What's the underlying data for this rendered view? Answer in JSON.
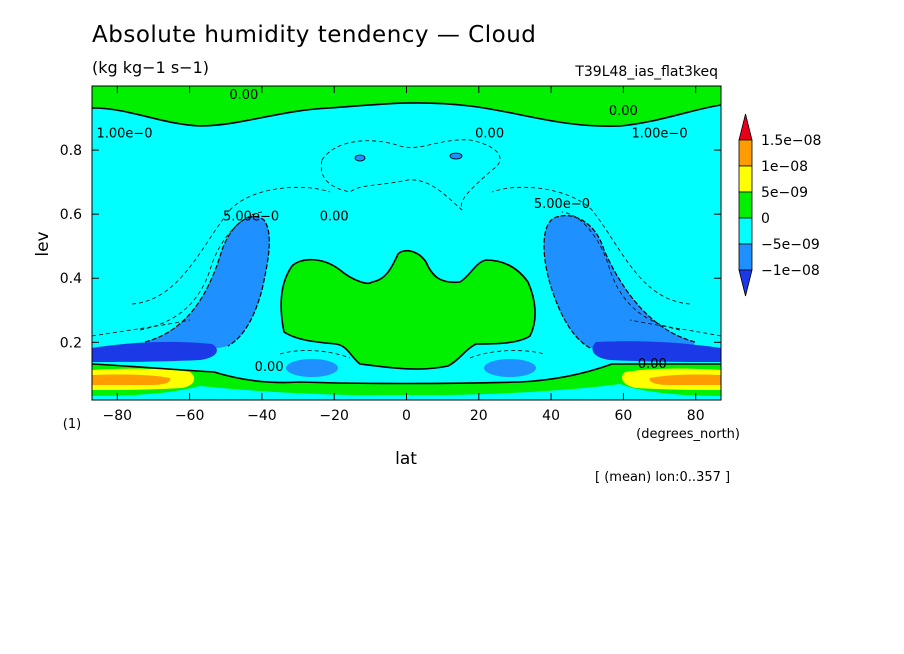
{
  "title": "Absolute humidity tendency — Cloud",
  "units": "(kg kg−1 s−1)",
  "experiment": "T39L48_ias_flat3keq",
  "note": "[ (mean) lon:0..357 ]",
  "chart_data": {
    "type": "contour",
    "xlabel": "lat",
    "x_units": "(degrees_north)",
    "ylabel": "lev",
    "y_units": "(1)",
    "xlim": [
      -87,
      87
    ],
    "ylim": [
      1.0,
      0.02
    ],
    "xticks": [
      -80,
      -60,
      -40,
      -20,
      0,
      20,
      40,
      60,
      80
    ],
    "xtick_labels": [
      "−80",
      "−60",
      "−40",
      "−20",
      "0",
      "20",
      "40",
      "60",
      "80"
    ],
    "yticks": [
      0.2,
      0.4,
      0.6,
      0.8
    ],
    "ytick_labels": [
      "0.2",
      "0.4",
      "0.6",
      "0.8"
    ],
    "colorbar": {
      "labels": [
        "1.5e−08",
        "1e−08",
        "5e−09",
        "0",
        "−5e−09",
        "−1e−08"
      ],
      "colors": [
        "#e8001a",
        "#ff9c00",
        "#ffff00",
        "#00f000",
        "#00ffff",
        "#1e90ff",
        "#1c39e8"
      ]
    },
    "contour_labels": [
      {
        "text": "0.00",
        "lon": -38,
        "lev": 0.11
      },
      {
        "text": "0.00",
        "lon": 68,
        "lev": 0.12
      },
      {
        "text": "0.00",
        "lon": -20,
        "lev": 0.58
      },
      {
        "text": "0.00",
        "lon": 23,
        "lev": 0.84
      },
      {
        "text": "0.00",
        "lon": -45,
        "lev": 0.96
      },
      {
        "text": "0.00",
        "lon": 60,
        "lev": 0.91
      },
      {
        "text": "5.00e−0",
        "lon": -43,
        "lev": 0.58
      },
      {
        "text": "5.00e−0",
        "lon": 43,
        "lev": 0.62
      },
      {
        "text": "1.00e−0",
        "lon": -78,
        "lev": 0.84
      },
      {
        "text": "1.00e−0",
        "lon": 70,
        "lev": 0.84
      }
    ]
  }
}
